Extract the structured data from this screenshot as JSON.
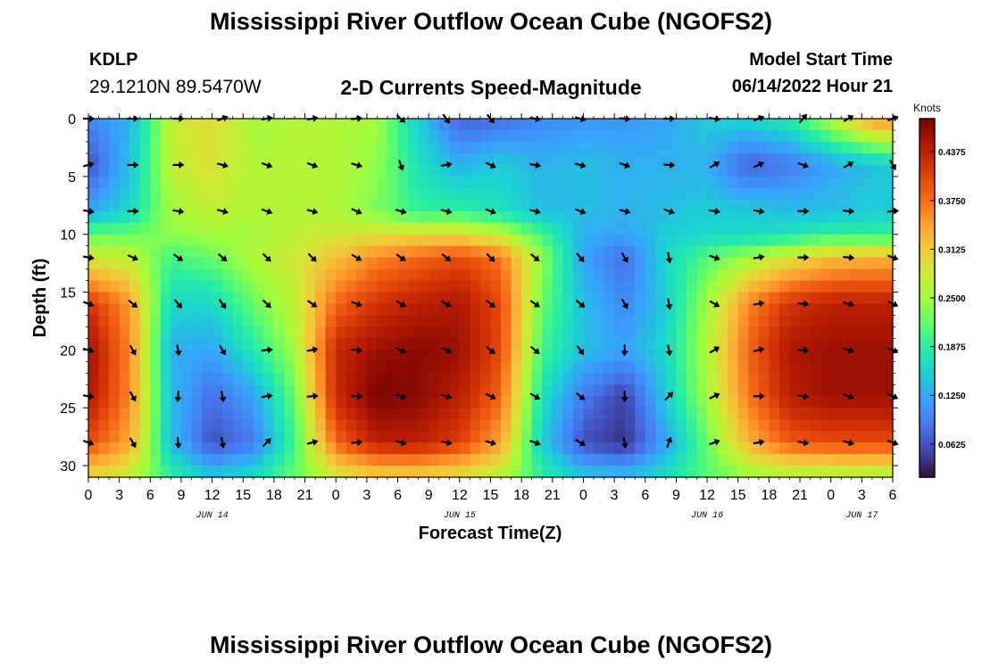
{
  "header": {
    "title": "Mississippi River Outflow Ocean Cube (NGOFS2)",
    "station": "KDLP",
    "coords": "29.1210N  89.5470W",
    "subtitle": "2-D Currents Speed-Magnitude",
    "start_label": "Model Start Time",
    "start_value": "06/14/2022 Hour 21"
  },
  "footer": {
    "title": "Mississippi River Outflow Ocean Cube (NGOFS2)"
  },
  "chart_data": {
    "type": "heatmap",
    "title": "2-D Currents Speed-Magnitude",
    "xlabel": "Forecast Time(Z)",
    "ylabel": "Depth (ft)",
    "x_range_hours": [
      0,
      78
    ],
    "y_range_ft": [
      0,
      31
    ],
    "y_ticks": [
      0,
      5,
      10,
      15,
      20,
      25,
      30
    ],
    "x_tick_labels": [
      "0",
      "3",
      "6",
      "9",
      "12",
      "15",
      "18",
      "21",
      "0",
      "3",
      "6",
      "9",
      "12",
      "15",
      "18",
      "21",
      "0",
      "3",
      "6",
      "9",
      "12",
      "15",
      "18",
      "21",
      "0",
      "3",
      "6"
    ],
    "date_labels": [
      {
        "label": "JUN 14",
        "hour": 12
      },
      {
        "label": "JUN 15",
        "hour": 36
      },
      {
        "label": "JUN 16",
        "hour": 60
      },
      {
        "label": "JUN 17",
        "hour": 75
      }
    ],
    "colorbar": {
      "unit": "Knots",
      "min": 0.02,
      "max": 0.48,
      "ticks": [
        "0.0625",
        "0.1250",
        "0.1875",
        "0.2500",
        "0.3125",
        "0.3750",
        "0.4375"
      ],
      "colors": [
        "#30123b",
        "#4145ab",
        "#4675ed",
        "#39a2fc",
        "#1bcfd4",
        "#24eca6",
        "#61fc6c",
        "#a4fc3b",
        "#d1e834",
        "#f3c63a",
        "#fe9b2d",
        "#f36315",
        "#d93806",
        "#b11901",
        "#7a0403"
      ]
    },
    "speed_anchor_columns_hours": [
      0,
      4,
      8,
      12,
      16,
      20,
      24,
      28,
      32,
      36,
      40,
      44,
      48,
      52,
      56,
      60,
      64,
      68,
      72,
      76,
      78
    ],
    "speed_anchor_rows_ft": [
      0,
      4,
      8,
      10,
      12,
      16,
      20,
      24,
      28,
      31
    ],
    "speed_grid_knots": [
      [
        0.1,
        0.13,
        0.27,
        0.3,
        0.25,
        0.26,
        0.26,
        0.25,
        0.15,
        0.07,
        0.08,
        0.1,
        0.11,
        0.11,
        0.12,
        0.15,
        0.16,
        0.18,
        0.26,
        0.35,
        0.36
      ],
      [
        0.06,
        0.14,
        0.27,
        0.29,
        0.26,
        0.26,
        0.26,
        0.24,
        0.17,
        0.13,
        0.15,
        0.13,
        0.14,
        0.13,
        0.13,
        0.13,
        0.07,
        0.09,
        0.12,
        0.14,
        0.15
      ],
      [
        0.12,
        0.16,
        0.25,
        0.27,
        0.26,
        0.26,
        0.26,
        0.23,
        0.19,
        0.19,
        0.17,
        0.14,
        0.14,
        0.13,
        0.14,
        0.15,
        0.15,
        0.14,
        0.14,
        0.15,
        0.15
      ],
      [
        0.22,
        0.22,
        0.24,
        0.25,
        0.25,
        0.27,
        0.28,
        0.29,
        0.3,
        0.3,
        0.27,
        0.2,
        0.13,
        0.12,
        0.15,
        0.16,
        0.16,
        0.17,
        0.19,
        0.19,
        0.19
      ],
      [
        0.28,
        0.27,
        0.2,
        0.22,
        0.26,
        0.28,
        0.32,
        0.36,
        0.38,
        0.4,
        0.37,
        0.24,
        0.12,
        0.08,
        0.16,
        0.21,
        0.25,
        0.29,
        0.32,
        0.33,
        0.33
      ],
      [
        0.42,
        0.35,
        0.16,
        0.16,
        0.22,
        0.27,
        0.38,
        0.42,
        0.44,
        0.45,
        0.4,
        0.22,
        0.14,
        0.1,
        0.15,
        0.25,
        0.36,
        0.42,
        0.44,
        0.44,
        0.44
      ],
      [
        0.46,
        0.36,
        0.13,
        0.12,
        0.18,
        0.25,
        0.43,
        0.46,
        0.47,
        0.46,
        0.4,
        0.2,
        0.14,
        0.12,
        0.16,
        0.26,
        0.38,
        0.45,
        0.46,
        0.46,
        0.46
      ],
      [
        0.45,
        0.36,
        0.14,
        0.08,
        0.12,
        0.22,
        0.43,
        0.48,
        0.47,
        0.44,
        0.38,
        0.17,
        0.09,
        0.05,
        0.15,
        0.25,
        0.37,
        0.44,
        0.46,
        0.46,
        0.46
      ],
      [
        0.4,
        0.34,
        0.14,
        0.06,
        0.09,
        0.2,
        0.38,
        0.44,
        0.44,
        0.41,
        0.34,
        0.15,
        0.06,
        0.04,
        0.12,
        0.22,
        0.33,
        0.39,
        0.4,
        0.4,
        0.4
      ],
      [
        0.3,
        0.27,
        0.19,
        0.15,
        0.17,
        0.22,
        0.28,
        0.3,
        0.3,
        0.29,
        0.26,
        0.19,
        0.15,
        0.14,
        0.17,
        0.21,
        0.24,
        0.25,
        0.25,
        0.25,
        0.25
      ]
    ],
    "vector_columns_hours": [
      0,
      4.3,
      8.7,
      13,
      17.3,
      21.7,
      26,
      30.3,
      34.7,
      39,
      43.3,
      47.7,
      52,
      56.3,
      60.7,
      65,
      69.3,
      73.7,
      78
    ],
    "vector_rows_ft": [
      0,
      4,
      8,
      12,
      16,
      20,
      24,
      28
    ],
    "vector_directions_deg": [
      [
        0,
        0,
        0,
        -20,
        -10,
        -10,
        -5,
        40,
        55,
        50,
        10,
        15,
        5,
        0,
        10,
        -20,
        -50,
        -30,
        -20
      ],
      [
        -15,
        0,
        0,
        15,
        20,
        20,
        15,
        70,
        -10,
        25,
        10,
        15,
        20,
        5,
        -30,
        -25,
        20,
        -30,
        60
      ],
      [
        10,
        0,
        10,
        15,
        20,
        15,
        25,
        15,
        15,
        20,
        15,
        20,
        15,
        20,
        10,
        10,
        0,
        5,
        -5
      ],
      [
        10,
        25,
        35,
        40,
        45,
        45,
        30,
        35,
        40,
        45,
        40,
        50,
        60,
        80,
        20,
        -10,
        0,
        5,
        20
      ],
      [
        20,
        40,
        50,
        55,
        45,
        35,
        20,
        30,
        30,
        40,
        35,
        40,
        60,
        80,
        30,
        -10,
        5,
        15,
        25
      ],
      [
        15,
        60,
        80,
        60,
        -5,
        -10,
        5,
        25,
        25,
        40,
        40,
        55,
        90,
        80,
        -30,
        -15,
        5,
        15,
        25
      ],
      [
        10,
        60,
        95,
        80,
        -10,
        -5,
        0,
        20,
        15,
        25,
        30,
        40,
        90,
        -45,
        -25,
        0,
        10,
        20,
        25
      ],
      [
        20,
        60,
        85,
        80,
        -45,
        -15,
        -5,
        15,
        10,
        15,
        20,
        30,
        80,
        -70,
        -20,
        -10,
        10,
        15,
        20
      ]
    ]
  }
}
